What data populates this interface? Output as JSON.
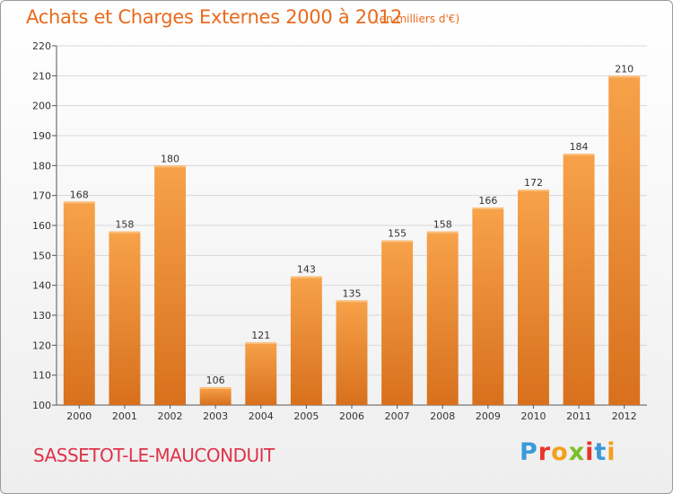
{
  "header": {
    "title": "Achats et Charges Externes 2000 à 2012",
    "unit": "(en milliers d'€)"
  },
  "footer": {
    "commune": "SASSETOT-LE-MAUCONDUIT",
    "logo_letters": [
      "P",
      "r",
      "o",
      "x",
      "i",
      "t",
      "i"
    ],
    "logo_colors": [
      "#3a9ad9",
      "#e8342a",
      "#f2a01c",
      "#7bbf2a",
      "#e8342a",
      "#3a9ad9",
      "#f2a01c"
    ]
  },
  "chart_data": {
    "type": "bar",
    "title": "Achats et Charges Externes 2000 à 2012",
    "categories": [
      "2000",
      "2001",
      "2002",
      "2003",
      "2004",
      "2005",
      "2006",
      "2007",
      "2008",
      "2009",
      "2010",
      "2011",
      "2012"
    ],
    "values": [
      168,
      158,
      180,
      106,
      121,
      143,
      135,
      155,
      158,
      166,
      172,
      184,
      210
    ],
    "ylim": [
      100,
      220
    ],
    "yticks": [
      100,
      110,
      120,
      130,
      140,
      150,
      160,
      170,
      180,
      190,
      200,
      210,
      220
    ],
    "grid": true,
    "bar_color": "#f29a3c",
    "bar_color_dark": "#d86f1a",
    "grid_color": "#d8d8d8"
  }
}
